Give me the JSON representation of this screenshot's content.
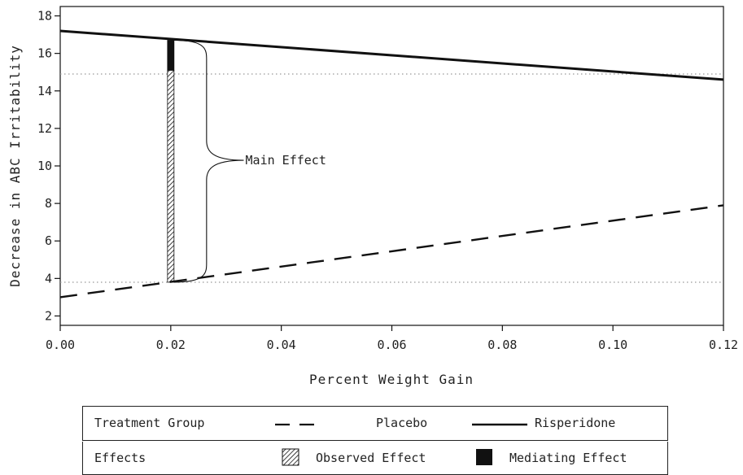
{
  "chart_data": {
    "type": "line",
    "xlabel": "Percent Weight Gain",
    "ylabel": "Decrease in ABC Irritability",
    "xlim": [
      0.0,
      0.12
    ],
    "ylim": [
      1.5,
      18.5
    ],
    "x_ticks": [
      "0.00",
      "0.02",
      "0.04",
      "0.06",
      "0.08",
      "0.10",
      "0.12"
    ],
    "y_ticks": [
      "2",
      "4",
      "6",
      "8",
      "10",
      "12",
      "14",
      "16",
      "18"
    ],
    "series": [
      {
        "name": "Placebo",
        "style": "dashed",
        "x": [
          0.0,
          0.12
        ],
        "y": [
          3.0,
          7.9
        ]
      },
      {
        "name": "Risperidone",
        "style": "solid",
        "x": [
          0.0,
          0.12
        ],
        "y": [
          17.2,
          14.6
        ]
      }
    ],
    "reference_lines": [
      {
        "y": 14.9,
        "style": "dotted"
      },
      {
        "y": 3.8,
        "style": "dotted"
      }
    ],
    "bars": [
      {
        "kind": "Observed Effect",
        "x": 0.02,
        "y0": 3.8,
        "y1": 15.1,
        "pattern": "hatched"
      },
      {
        "kind": "Mediating Effect",
        "x": 0.02,
        "y0": 15.1,
        "y1": 16.7,
        "pattern": "solid"
      }
    ],
    "annotations": [
      {
        "text": "Main Effect",
        "x": 0.0335,
        "y": 10.3
      }
    ],
    "grid": false
  },
  "legend": {
    "group_title": "Treatment Group",
    "placebo": "Placebo",
    "risperidone": "Risperidone",
    "effects_title": "Effects",
    "observed": "Observed Effect",
    "mediating": "Mediating Effect"
  },
  "colors": {
    "ink": "#111111",
    "reference": "#999999"
  }
}
